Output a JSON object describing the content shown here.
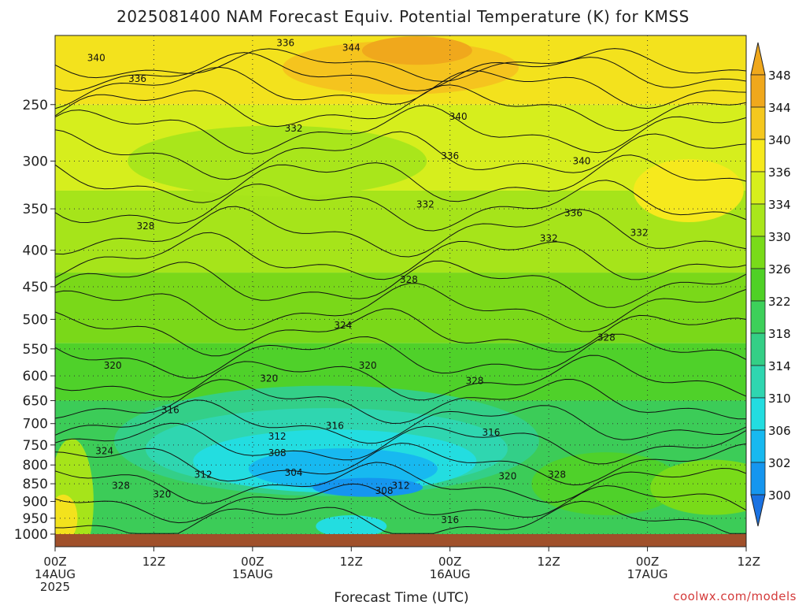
{
  "title": "2025081400 NAM Forecast Equiv. Potential Temperature (K) for KMSS",
  "xlabel": "Forecast Time (UTC)",
  "credit": "coolwx.com/models",
  "chart_data": {
    "type": "heatmap",
    "title": "2025081400 NAM Forecast Equiv. Potential Temperature (K) for KMSS",
    "xlabel": "Forecast Time (UTC)",
    "ylabel": "",
    "x_ticks": [
      {
        "t": 0,
        "lines": [
          "00Z",
          "14AUG",
          "2025"
        ]
      },
      {
        "t": 12,
        "lines": [
          "12Z"
        ]
      },
      {
        "t": 24,
        "lines": [
          "00Z",
          "15AUG"
        ]
      },
      {
        "t": 36,
        "lines": [
          "12Z"
        ]
      },
      {
        "t": 48,
        "lines": [
          "00Z",
          "16AUG"
        ]
      },
      {
        "t": 60,
        "lines": [
          "12Z"
        ]
      },
      {
        "t": 72,
        "lines": [
          "00Z",
          "17AUG"
        ]
      },
      {
        "t": 84,
        "lines": [
          "12Z"
        ]
      }
    ],
    "xlim": [
      0,
      84
    ],
    "y_ticks": [
      250,
      300,
      350,
      400,
      450,
      500,
      550,
      600,
      650,
      700,
      750,
      800,
      850,
      900,
      950,
      1000
    ],
    "ylim": [
      1000,
      200
    ],
    "y_scale": "log",
    "units": "K",
    "colorbar": {
      "labels": [
        348,
        344,
        340,
        336,
        334,
        330,
        326,
        322,
        318,
        314,
        310,
        306,
        302,
        300
      ],
      "colors": [
        "#f0a81c",
        "#f5c81e",
        "#f6e91d",
        "#d7ef1c",
        "#a9e61b",
        "#79db19",
        "#4fd126",
        "#3dd05a",
        "#34cf86",
        "#2fd6b0",
        "#23dde0",
        "#17b9f0",
        "#1596ef",
        "#1a72e2"
      ]
    },
    "contour_labels": [
      {
        "t": 5,
        "p": 215,
        "v": "340"
      },
      {
        "t": 10,
        "p": 230,
        "v": "336"
      },
      {
        "t": 28,
        "p": 205,
        "v": "336"
      },
      {
        "t": 36,
        "p": 208,
        "v": "344"
      },
      {
        "t": 29,
        "p": 270,
        "v": "332"
      },
      {
        "t": 49,
        "p": 260,
        "v": "340"
      },
      {
        "t": 48,
        "p": 295,
        "v": "336"
      },
      {
        "t": 64,
        "p": 300,
        "v": "340"
      },
      {
        "t": 45,
        "p": 345,
        "v": "332"
      },
      {
        "t": 63,
        "p": 355,
        "v": "336"
      },
      {
        "t": 60,
        "p": 385,
        "v": "332"
      },
      {
        "t": 71,
        "p": 378,
        "v": "332"
      },
      {
        "t": 11,
        "p": 370,
        "v": "328"
      },
      {
        "t": 43,
        "p": 440,
        "v": "328"
      },
      {
        "t": 35,
        "p": 510,
        "v": "324"
      },
      {
        "t": 67,
        "p": 530,
        "v": "328"
      },
      {
        "t": 7,
        "p": 580,
        "v": "320"
      },
      {
        "t": 26,
        "p": 605,
        "v": "320"
      },
      {
        "t": 38,
        "p": 580,
        "v": "320"
      },
      {
        "t": 51,
        "p": 610,
        "v": "328"
      },
      {
        "t": 14,
        "p": 670,
        "v": "316"
      },
      {
        "t": 34,
        "p": 705,
        "v": "316"
      },
      {
        "t": 53,
        "p": 720,
        "v": "316"
      },
      {
        "t": 27,
        "p": 730,
        "v": "312"
      },
      {
        "t": 27,
        "p": 770,
        "v": "308"
      },
      {
        "t": 29,
        "p": 820,
        "v": "304"
      },
      {
        "t": 18,
        "p": 825,
        "v": "312"
      },
      {
        "t": 40,
        "p": 870,
        "v": "308"
      },
      {
        "t": 42,
        "p": 855,
        "v": "312"
      },
      {
        "t": 6,
        "p": 765,
        "v": "324"
      },
      {
        "t": 8,
        "p": 855,
        "v": "328"
      },
      {
        "t": 13,
        "p": 880,
        "v": "320"
      },
      {
        "t": 55,
        "p": 830,
        "v": "320"
      },
      {
        "t": 61,
        "p": 825,
        "v": "328"
      },
      {
        "t": 48,
        "p": 955,
        "v": "316"
      }
    ]
  }
}
